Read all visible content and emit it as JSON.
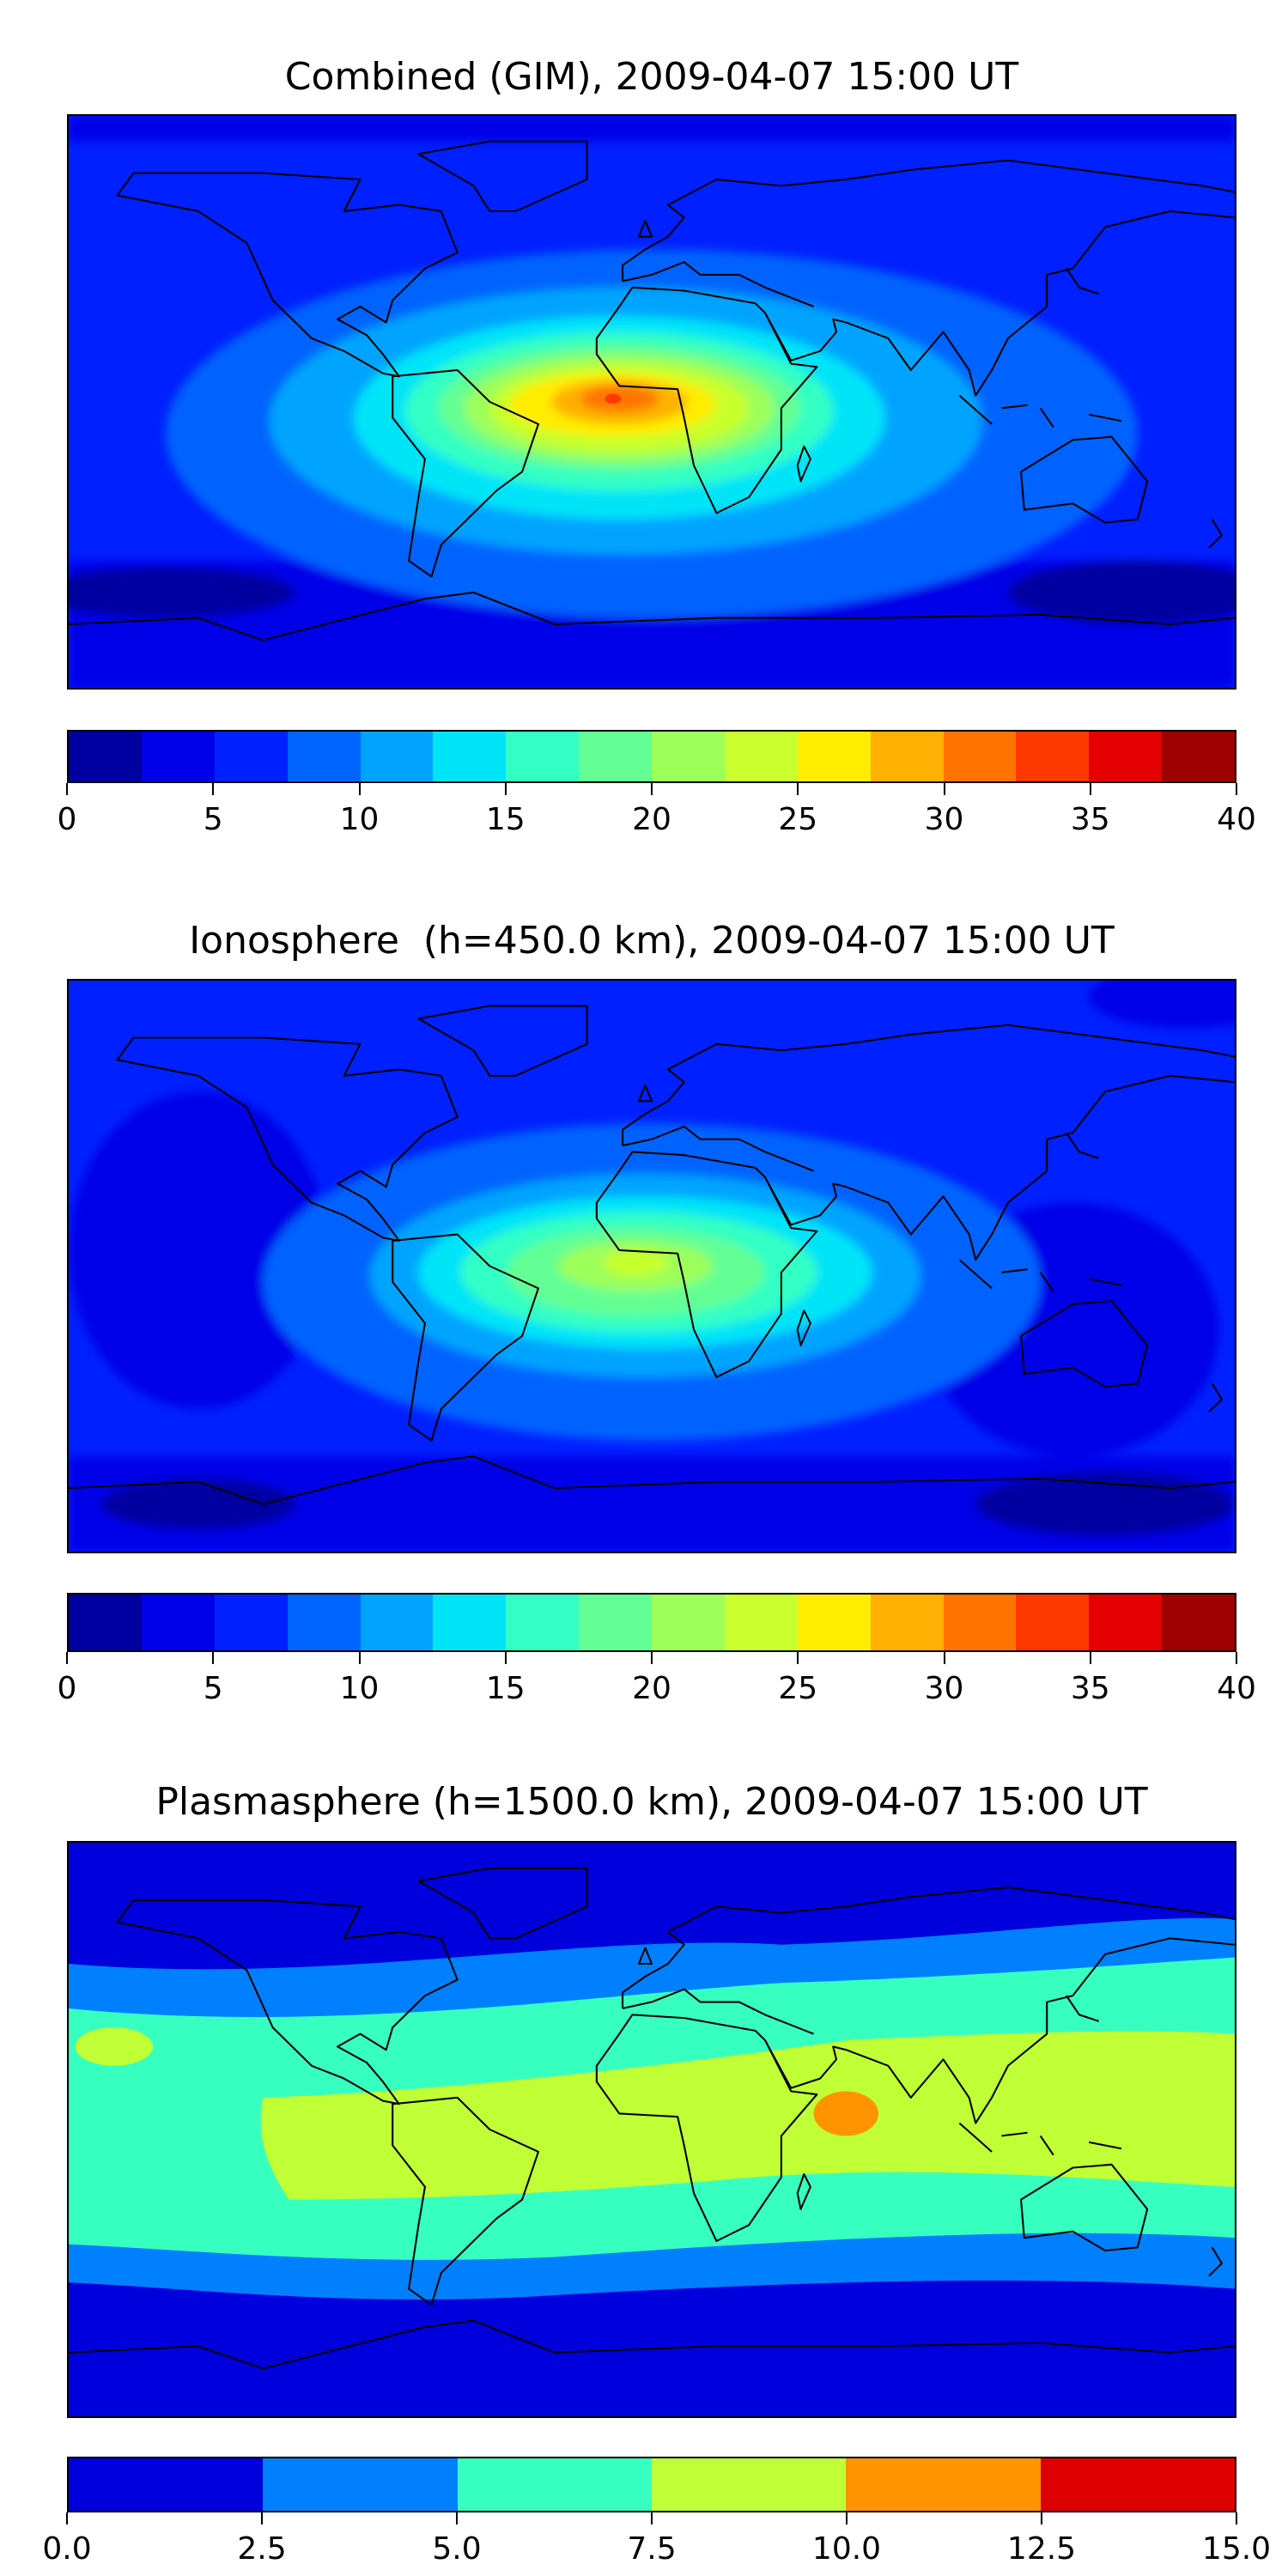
{
  "chart_data": [
    {
      "type": "heatmap",
      "title": "Combined (GIM), 2009-04-07 15:00 UT",
      "projection": "plate carree, global",
      "colorbar": {
        "levels": [
          0,
          2.5,
          5,
          7.5,
          10,
          12.5,
          15,
          17.5,
          20,
          22.5,
          25,
          27.5,
          30,
          32.5,
          35,
          37.5,
          40
        ],
        "colors": [
          "#0000a0",
          "#0000e8",
          "#0020ff",
          "#0064ff",
          "#00a4ff",
          "#00e4f8",
          "#32ffc4",
          "#64ff94",
          "#9cff5a",
          "#c8ff2c",
          "#ffec00",
          "#ffb000",
          "#ff7400",
          "#ff3800",
          "#e40000",
          "#9f0000"
        ],
        "ticks": [
          "0",
          "5",
          "10",
          "15",
          "20",
          "25",
          "30",
          "35",
          "40"
        ],
        "range": [
          0,
          40
        ]
      },
      "peak_region": "equatorial Atlantic / West Africa, max ~32.5-35"
    },
    {
      "type": "heatmap",
      "title": "Ionosphere  (h=450.0 km), 2009-04-07 15:00 UT",
      "projection": "plate carree, global",
      "colorbar": {
        "levels": [
          0,
          2.5,
          5,
          7.5,
          10,
          12.5,
          15,
          17.5,
          20,
          22.5,
          25,
          27.5,
          30,
          32.5,
          35,
          37.5,
          40
        ],
        "colors": [
          "#0000a0",
          "#0000e8",
          "#0020ff",
          "#0064ff",
          "#00a4ff",
          "#00e4f8",
          "#32ffc4",
          "#64ff94",
          "#9cff5a",
          "#c8ff2c",
          "#ffec00",
          "#ffb000",
          "#ff7400",
          "#ff3800",
          "#e40000",
          "#9f0000"
        ],
        "ticks": [
          "0",
          "5",
          "10",
          "15",
          "20",
          "25",
          "30",
          "35",
          "40"
        ],
        "range": [
          0,
          40
        ]
      },
      "peak_region": "equatorial Africa, max ~22.5-25"
    },
    {
      "type": "heatmap",
      "title": "Plasmasphere (h=1500.0 km), 2009-04-07 15:00 UT",
      "projection": "plate carree, global",
      "colorbar": {
        "levels": [
          0,
          2.5,
          5,
          7.5,
          10,
          12.5,
          15
        ],
        "colors": [
          "#0000dc",
          "#0080ff",
          "#36ffc0",
          "#c0ff36",
          "#ff9400",
          "#dc0000"
        ],
        "ticks": [
          "0.0",
          "2.5",
          "5.0",
          "7.5",
          "10.0",
          "12.5",
          "15.0"
        ],
        "range": [
          0,
          15
        ]
      },
      "peak_region": "Arabian Sea, max ~10-12.5"
    }
  ]
}
